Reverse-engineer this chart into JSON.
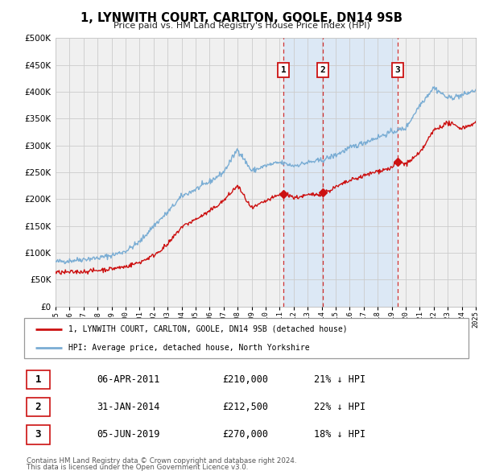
{
  "title": "1, LYNWITH COURT, CARLTON, GOOLE, DN14 9SB",
  "subtitle": "Price paid vs. HM Land Registry's House Price Index (HPI)",
  "hpi_color": "#7aadd4",
  "property_color": "#cc1111",
  "background_color": "#f0f0f0",
  "plot_bg_color": "#f0f0f0",
  "shade_color": "#dce8f5",
  "grid_color": "#cccccc",
  "vline_color": "#cc1111",
  "ylim": [
    0,
    500000
  ],
  "xlim": [
    1995,
    2025
  ],
  "yticks": [
    0,
    50000,
    100000,
    150000,
    200000,
    250000,
    300000,
    350000,
    400000,
    450000,
    500000
  ],
  "sale_markers": [
    {
      "label": "1",
      "date_num": 2011.27,
      "price": 210000,
      "text": "06-APR-2011",
      "pct": "21% ↓ HPI"
    },
    {
      "label": "2",
      "date_num": 2014.08,
      "price": 212500,
      "text": "31-JAN-2014",
      "pct": "22% ↓ HPI"
    },
    {
      "label": "3",
      "date_num": 2019.43,
      "price": 270000,
      "text": "05-JUN-2019",
      "pct": "18% ↓ HPI"
    }
  ],
  "legend_entries": [
    "1, LYNWITH COURT, CARLTON, GOOLE, DN14 9SB (detached house)",
    "HPI: Average price, detached house, North Yorkshire"
  ],
  "table_rows": [
    {
      "num": "1",
      "date": "06-APR-2011",
      "price": "£210,000",
      "pct": "21% ↓ HPI"
    },
    {
      "num": "2",
      "date": "31-JAN-2014",
      "price": "£212,500",
      "pct": "22% ↓ HPI"
    },
    {
      "num": "3",
      "date": "05-JUN-2019",
      "price": "£270,000",
      "pct": "18% ↓ HPI"
    }
  ],
  "footer_line1": "Contains HM Land Registry data © Crown copyright and database right 2024.",
  "footer_line2": "This data is licensed under the Open Government Licence v3.0."
}
